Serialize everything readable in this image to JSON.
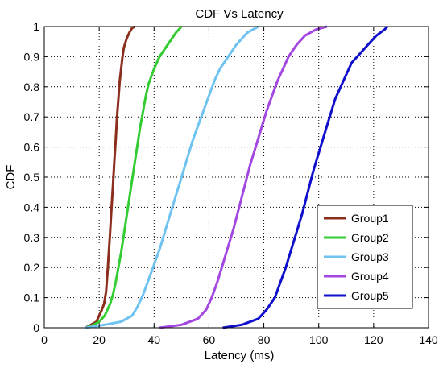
{
  "chart_data": {
    "type": "line",
    "title": "CDF Vs Latency",
    "xlabel": "Latency (ms)",
    "ylabel": "CDF",
    "xlim": [
      0,
      140
    ],
    "ylim": [
      0,
      1
    ],
    "xticks": [
      0,
      20,
      40,
      60,
      80,
      100,
      120,
      140
    ],
    "yticks": [
      0,
      0.1,
      0.2,
      0.3,
      0.4,
      0.5,
      0.6,
      0.7,
      0.8,
      0.9,
      1
    ],
    "grid": true,
    "legend_position": "bottom-right",
    "series": [
      {
        "name": "Group1",
        "color": "#8B2E1E",
        "x": [
          15,
          17,
          19,
          20,
          21,
          21.8,
          22.5,
          23,
          23.5,
          24,
          24.5,
          25,
          25.5,
          26,
          26.5,
          27,
          27.5,
          28,
          28.5,
          29,
          30,
          31,
          32,
          33
        ],
        "y": [
          0,
          0.01,
          0.02,
          0.04,
          0.06,
          0.08,
          0.12,
          0.18,
          0.25,
          0.32,
          0.4,
          0.47,
          0.55,
          0.62,
          0.7,
          0.76,
          0.82,
          0.86,
          0.9,
          0.93,
          0.96,
          0.98,
          0.995,
          1
        ]
      },
      {
        "name": "Group2",
        "color": "#33CC33",
        "x": [
          15,
          18,
          20,
          22,
          23,
          24,
          25,
          26,
          27,
          28,
          29,
          30,
          31,
          32,
          33,
          34,
          35,
          36,
          37,
          38,
          40,
          42,
          45,
          48,
          50
        ],
        "y": [
          0,
          0.01,
          0.02,
          0.04,
          0.06,
          0.08,
          0.11,
          0.15,
          0.2,
          0.25,
          0.31,
          0.37,
          0.43,
          0.49,
          0.55,
          0.61,
          0.67,
          0.72,
          0.77,
          0.81,
          0.86,
          0.9,
          0.94,
          0.98,
          1
        ]
      },
      {
        "name": "Group3",
        "color": "#6EC3F0",
        "x": [
          15,
          22,
          28,
          32,
          34,
          36,
          38,
          40,
          42,
          44,
          46,
          48,
          50,
          52,
          54,
          56,
          58,
          60,
          62,
          64,
          67,
          70,
          74,
          78
        ],
        "y": [
          0,
          0.01,
          0.02,
          0.04,
          0.07,
          0.11,
          0.16,
          0.21,
          0.26,
          0.32,
          0.38,
          0.44,
          0.5,
          0.56,
          0.62,
          0.67,
          0.72,
          0.77,
          0.82,
          0.86,
          0.9,
          0.94,
          0.98,
          1
        ]
      },
      {
        "name": "Group4",
        "color": "#A347E0",
        "x": [
          42,
          50,
          56,
          59,
          61,
          63,
          65,
          67,
          69,
          71,
          73,
          75,
          77,
          79,
          81,
          83,
          85,
          87,
          89,
          92,
          95,
          99,
          103
        ],
        "y": [
          0,
          0.01,
          0.03,
          0.06,
          0.1,
          0.15,
          0.21,
          0.27,
          0.33,
          0.4,
          0.47,
          0.54,
          0.6,
          0.66,
          0.72,
          0.77,
          0.82,
          0.86,
          0.9,
          0.94,
          0.97,
          0.99,
          1
        ]
      },
      {
        "name": "Group5",
        "color": "#1010CC",
        "x": [
          65,
          72,
          78,
          81,
          84,
          86,
          88,
          90,
          92,
          94,
          96,
          98,
          100,
          102,
          104,
          106,
          108,
          110,
          112,
          115,
          118,
          121,
          124,
          125
        ],
        "y": [
          0,
          0.01,
          0.03,
          0.06,
          0.1,
          0.15,
          0.2,
          0.26,
          0.32,
          0.38,
          0.45,
          0.52,
          0.58,
          0.64,
          0.7,
          0.76,
          0.8,
          0.84,
          0.88,
          0.91,
          0.94,
          0.97,
          0.99,
          1
        ]
      }
    ]
  }
}
